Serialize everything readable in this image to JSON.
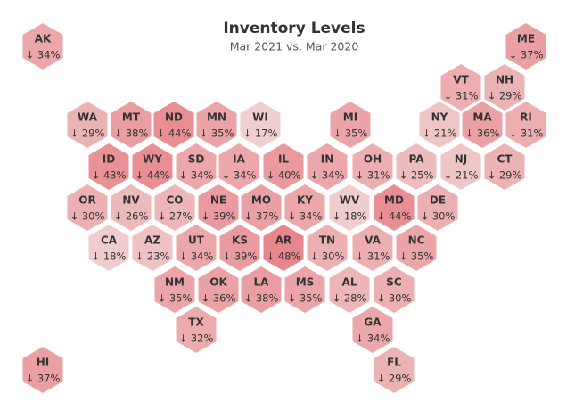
{
  "chart_data": {
    "type": "hexmap",
    "title": "Inventory Levels",
    "subtitle": "Mar 2021 vs. Mar 2020",
    "categories": [
      "AK",
      "ME",
      "VT",
      "NH",
      "WA",
      "MT",
      "ND",
      "MN",
      "WI",
      "MI",
      "NY",
      "MA",
      "RI",
      "ID",
      "WY",
      "SD",
      "IA",
      "IL",
      "IN",
      "OH",
      "PA",
      "NJ",
      "CT",
      "OR",
      "NV",
      "CO",
      "NE",
      "MO",
      "KY",
      "WV",
      "MD",
      "DE",
      "CA",
      "AZ",
      "UT",
      "KS",
      "AR",
      "TN",
      "VA",
      "NC",
      "NM",
      "OK",
      "LA",
      "MS",
      "AL",
      "SC",
      "TX",
      "GA",
      "HI",
      "FL"
    ],
    "values": [
      34,
      37,
      31,
      29,
      29,
      38,
      44,
      35,
      17,
      35,
      21,
      36,
      31,
      43,
      44,
      34,
      34,
      40,
      34,
      31,
      25,
      21,
      29,
      30,
      26,
      27,
      39,
      37,
      34,
      18,
      44,
      30,
      18,
      23,
      34,
      39,
      48,
      30,
      31,
      35,
      35,
      36,
      38,
      35,
      28,
      30,
      32,
      34,
      37,
      29
    ],
    "value_labels": [
      "↓ 34%",
      "↓ 37%",
      "↓ 31%",
      "↓ 29%",
      "↓ 29%",
      "↓ 38%",
      "↓ 44%",
      "↓ 35%",
      "↓ 17%",
      "↓ 35%",
      "↓ 21%",
      "↓ 36%",
      "↓ 31%",
      "↓ 43%",
      "↓ 44%",
      "↓ 34%",
      "↓ 34%",
      "↓ 40%",
      "↓ 34%",
      "↓ 31%",
      "↓ 25%",
      "↓ 21%",
      "↓ 29%",
      "↓ 30%",
      "↓ 26%",
      "↓ 27%",
      "↓ 39%",
      "↓ 37%",
      "↓ 34%",
      "↓ 18%",
      "↓ 44%",
      "↓ 30%",
      "↓ 18%",
      "↓ 23%",
      "↓ 34%",
      "↓ 39%",
      "↓ 48%",
      "↓ 30%",
      "↓ 31%",
      "↓ 35%",
      "↓ 35%",
      "↓ 36%",
      "↓ 38%",
      "↓ 35%",
      "↓ 28%",
      "↓ 30%",
      "↓ 32%",
      "↓ 34%",
      "↓ 37%",
      "↓ 29%"
    ],
    "color_range": [
      "#efcfcf",
      "#e8868b"
    ]
  }
}
